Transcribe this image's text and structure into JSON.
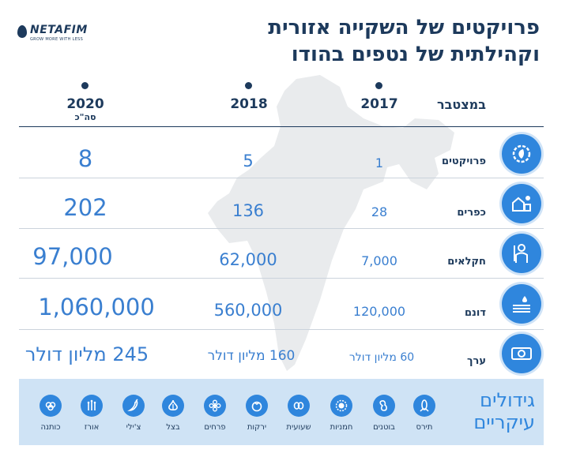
{
  "brand": {
    "name": "NETAFIM",
    "tagline": "GROW MORE WITH LESS"
  },
  "title": {
    "line1": "פרויקטים של השקייה אזורית",
    "line2": "וקהילתית של נטפים בהודו"
  },
  "columns": [
    {
      "year": "2020",
      "sub": "סה\"כ"
    },
    {
      "year": "2018",
      "sub": ""
    },
    {
      "year": "2017",
      "sub": ""
    }
  ],
  "status_label": "במצטבר",
  "rows": [
    {
      "label": "פרויקטים",
      "icon": "gear-leaf-icon",
      "v2017": "1",
      "v2018": "5",
      "v2020": "8"
    },
    {
      "label": "כפרים",
      "icon": "village-icon",
      "v2017": "28",
      "v2018": "136",
      "v2020": "202"
    },
    {
      "label": "חקלאים",
      "icon": "farmer-icon",
      "v2017": "7,000",
      "v2018": "62,000",
      "v2020": "97,000"
    },
    {
      "label": "דונם",
      "icon": "field-icon",
      "v2017": "120,000",
      "v2018": "560,000",
      "v2020": "1,060,000"
    },
    {
      "label": "ערך",
      "icon": "money-icon",
      "v2017": "60 מליון דולר",
      "v2018": "160 מליון דולר",
      "v2020": "245 מליון דולר"
    }
  ],
  "crops_title": {
    "line1": "גידולים",
    "line2": "עיקריים"
  },
  "crops": [
    {
      "label": "תירס",
      "icon": "corn-icon"
    },
    {
      "label": "בוטנים",
      "icon": "peanut-icon"
    },
    {
      "label": "חמניות",
      "icon": "sunflower-icon"
    },
    {
      "label": "שעועית",
      "icon": "beans-icon"
    },
    {
      "label": "ירקות",
      "icon": "tomato-icon"
    },
    {
      "label": "פרחים",
      "icon": "flower-icon"
    },
    {
      "label": "בצל",
      "icon": "onion-icon"
    },
    {
      "label": "צ'ילי",
      "icon": "chili-icon"
    },
    {
      "label": "אורז",
      "icon": "rice-icon"
    },
    {
      "label": "כותנה",
      "icon": "cotton-icon"
    }
  ],
  "colors": {
    "navy": "#1d3a5c",
    "accent": "#2f86dd",
    "band": "#cfe3f5"
  }
}
